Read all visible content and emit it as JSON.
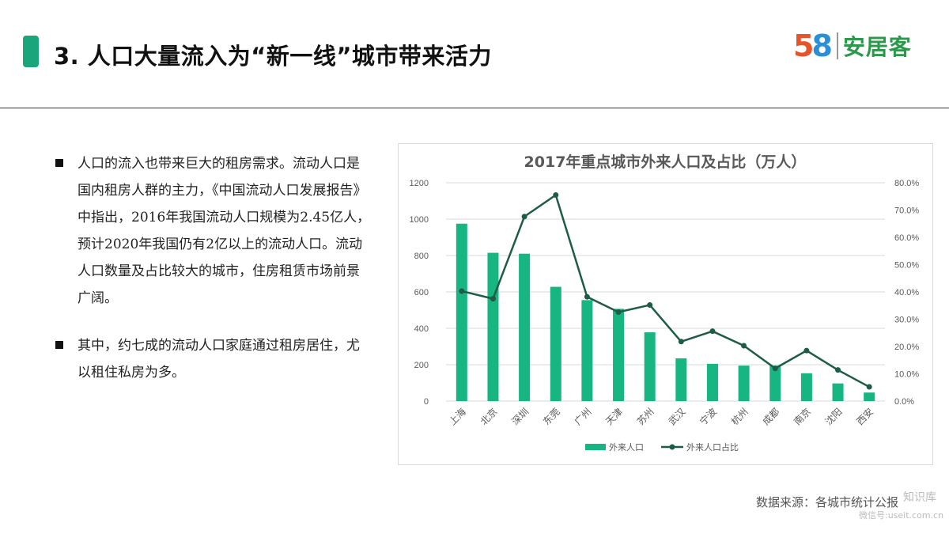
{
  "header": {
    "title": "3. 人口大量流入为“新一线”城市带来活力",
    "logo_number_5": "5",
    "logo_number_8": "8",
    "logo_text": "安居客"
  },
  "bullets": [
    "人口的流入也带来巨大的租房需求。流动人口是国内租房人群的主力，《中国流动人口发展报告》中指出，2016年我国流动人口规模为2.45亿人，预计2020年我国仍有2亿以上的流动人口。流动人口数量及占比较大的城市，住房租赁市场前景广阔。",
    "其中，约七成的流动人口家庭通过租房居住，尤以租住私房为多。"
  ],
  "source": "数据来源：各城市统计公报",
  "watermark": {
    "line1": "知识库",
    "line2": "微信号:useit.com.cn"
  },
  "colors": {
    "accent": "#1aa67a",
    "bar": "#16b581",
    "line": "#1e5c48"
  },
  "chart_data": {
    "type": "bar",
    "title": "2017年重点城市外来人口及占比（万人）",
    "categories": [
      "上海",
      "北京",
      "深圳",
      "东莞",
      "广州",
      "天津",
      "苏州",
      "武汉",
      "宁波",
      "杭州",
      "成都",
      "南京",
      "沈阳",
      "西安"
    ],
    "series": [
      {
        "name": "外来人口",
        "type": "bar",
        "axis": "left",
        "values": [
          975,
          815,
          810,
          628,
          555,
          507,
          378,
          235,
          205,
          195,
          195,
          153,
          97,
          47
        ]
      },
      {
        "name": "外来人口占比",
        "type": "line",
        "axis": "right",
        "values": [
          40.3,
          37.5,
          67.6,
          75.5,
          38.2,
          32.6,
          35.2,
          21.8,
          25.6,
          20.3,
          12.0,
          18.5,
          11.4,
          5.2
        ]
      }
    ],
    "y_left": {
      "min": 0,
      "max": 1200,
      "ticks": [
        "0",
        "200",
        "400",
        "600",
        "800",
        "1000",
        "1200"
      ]
    },
    "y_right": {
      "min": 0,
      "max": 80,
      "ticks": [
        "0.0%",
        "10.0%",
        "20.0%",
        "30.0%",
        "40.0%",
        "50.0%",
        "60.0%",
        "70.0%",
        "80.0%"
      ]
    },
    "grid": true,
    "legend_position": "bottom"
  }
}
